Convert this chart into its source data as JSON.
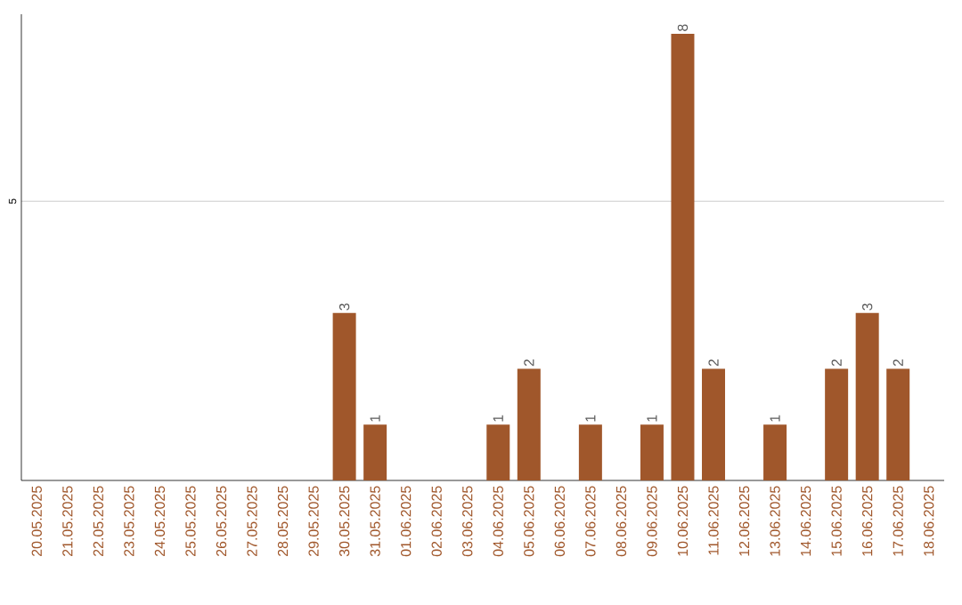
{
  "chart_data": {
    "type": "bar",
    "categories": [
      "20.05.2025",
      "21.05.2025",
      "22.05.2025",
      "23.05.2025",
      "24.05.2025",
      "25.05.2025",
      "26.05.2025",
      "27.05.2025",
      "28.05.2025",
      "29.05.2025",
      "30.05.2025",
      "31.05.2025",
      "01.06.2025",
      "02.06.2025",
      "03.06.2025",
      "04.06.2025",
      "05.06.2025",
      "06.06.2025",
      "07.06.2025",
      "08.06.2025",
      "09.06.2025",
      "10.06.2025",
      "11.06.2025",
      "12.06.2025",
      "13.06.2025",
      "14.06.2025",
      "15.06.2025",
      "16.06.2025",
      "17.06.2025",
      "18.06.2025"
    ],
    "values": [
      0,
      0,
      0,
      0,
      0,
      0,
      0,
      0,
      0,
      0,
      3,
      1,
      0,
      0,
      0,
      1,
      2,
      0,
      1,
      0,
      1,
      8,
      2,
      0,
      1,
      0,
      2,
      3,
      2,
      0
    ],
    "value_labels": [
      null,
      null,
      null,
      null,
      null,
      null,
      null,
      null,
      null,
      null,
      "3",
      "1",
      null,
      null,
      null,
      "1",
      "2",
      null,
      "1",
      null,
      "1",
      "8",
      "2",
      null,
      "1",
      null,
      "2",
      "3",
      "2",
      null
    ],
    "color": "#a0572b",
    "ylim": [
      0,
      8.35
    ],
    "yticks": [
      5
    ],
    "grid": "y"
  }
}
